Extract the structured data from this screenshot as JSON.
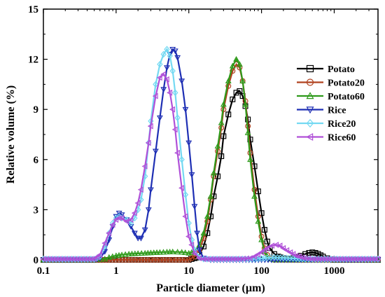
{
  "chart_data": {
    "type": "line",
    "xlabel": "Particle diameter (µm)",
    "ylabel": "Relative volume (%)",
    "x_scale": "log",
    "xlim": [
      0.1,
      4000
    ],
    "ylim": [
      0,
      15
    ],
    "x_ticks": [
      0.1,
      1,
      10,
      100,
      1000
    ],
    "x_tick_labels": [
      "0.1",
      "1",
      "10",
      "100",
      "1000"
    ],
    "y_ticks": [
      0,
      3,
      6,
      9,
      12,
      15
    ],
    "y_tick_labels": [
      "0",
      "3",
      "6",
      "9",
      "12",
      "15"
    ],
    "grid": false,
    "legend_position": "right",
    "series": [
      {
        "name": "Potato",
        "color": "#000000",
        "marker": "square",
        "x": [
          0.1,
          0.5,
          0.8,
          1.5,
          3,
          6,
          10,
          12,
          14,
          16,
          18,
          20,
          22,
          25,
          28,
          30,
          35,
          40,
          45,
          50,
          55,
          60,
          65,
          70,
          80,
          90,
          100,
          110,
          120,
          130,
          150,
          170,
          200,
          250,
          300,
          350,
          400,
          450,
          500,
          550,
          600,
          650,
          700,
          800,
          900,
          1000,
          1500,
          2000,
          3000,
          4000
        ],
        "y": [
          0,
          0,
          0,
          0,
          0,
          0,
          0,
          0.1,
          0.3,
          0.8,
          1.6,
          2.6,
          3.8,
          5.0,
          6.2,
          7.4,
          8.7,
          9.6,
          10.0,
          10.1,
          9.8,
          9.2,
          8.4,
          7.2,
          5.6,
          4.1,
          2.8,
          1.8,
          1.1,
          0.7,
          0.35,
          0.2,
          0.1,
          0.05,
          0.15,
          0.25,
          0.35,
          0.42,
          0.45,
          0.42,
          0.36,
          0.28,
          0.2,
          0.1,
          0.04,
          0,
          0,
          0,
          0,
          0
        ]
      },
      {
        "name": "Potato20",
        "color": "#b0411e",
        "marker": "circle",
        "x": [
          0.1,
          0.5,
          0.8,
          1.5,
          3,
          6,
          10,
          12,
          14,
          16,
          18,
          20,
          22,
          25,
          28,
          30,
          35,
          40,
          45,
          50,
          55,
          60,
          65,
          70,
          80,
          90,
          100,
          110,
          120,
          130,
          150,
          200,
          300,
          500,
          1000,
          2000,
          4000
        ],
        "y": [
          0,
          0,
          0,
          0,
          0,
          0,
          0,
          0.2,
          0.6,
          1.3,
          2.3,
          3.6,
          5.0,
          6.5,
          7.9,
          9.0,
          10.4,
          11.3,
          11.7,
          11.5,
          10.7,
          9.5,
          8.0,
          6.4,
          4.2,
          2.6,
          1.4,
          0.7,
          0.3,
          0.1,
          0,
          0,
          0,
          0,
          0,
          0,
          0
        ]
      },
      {
        "name": "Potato60",
        "color": "#2e9a1a",
        "marker": "triangle-up",
        "x": [
          0.1,
          0.5,
          0.7,
          0.8,
          1,
          1.2,
          1.5,
          2,
          2.5,
          3,
          4,
          5,
          6,
          7,
          8,
          10,
          12,
          14,
          16,
          18,
          20,
          22,
          25,
          28,
          30,
          35,
          40,
          45,
          50,
          55,
          60,
          65,
          70,
          80,
          90,
          100,
          110,
          120,
          130,
          150,
          200,
          300,
          500,
          1000,
          2000,
          4000
        ],
        "y": [
          0,
          0,
          0.05,
          0.15,
          0.25,
          0.3,
          0.35,
          0.38,
          0.4,
          0.42,
          0.45,
          0.47,
          0.48,
          0.47,
          0.46,
          0.4,
          0.5,
          0.9,
          1.6,
          2.6,
          3.8,
          5.2,
          6.8,
          8.2,
          9.3,
          10.7,
          11.6,
          12.0,
          11.7,
          10.7,
          9.3,
          7.6,
          6.0,
          3.8,
          2.3,
          1.2,
          0.5,
          0.2,
          0.05,
          0,
          0,
          0,
          0,
          0,
          0,
          0
        ]
      },
      {
        "name": "Rice",
        "color": "#1e2fb4",
        "marker": "triangle-down",
        "x": [
          0.1,
          0.5,
          0.6,
          0.7,
          0.8,
          0.9,
          1,
          1.1,
          1.2,
          1.4,
          1.6,
          1.8,
          2,
          2.2,
          2.5,
          2.8,
          3,
          3.5,
          4,
          4.5,
          5,
          5.5,
          6,
          6.5,
          7,
          8,
          9,
          10,
          11,
          12,
          13,
          14,
          16,
          20,
          50,
          100,
          1000,
          4000
        ],
        "y": [
          0,
          0,
          0.1,
          0.5,
          1.2,
          2.0,
          2.6,
          2.8,
          2.7,
          2.4,
          2.0,
          1.6,
          1.3,
          1.3,
          1.8,
          3.0,
          4.2,
          6.5,
          8.5,
          10.2,
          11.5,
          12.3,
          12.6,
          12.5,
          12.1,
          10.7,
          9.0,
          7.0,
          5.1,
          3.2,
          1.6,
          0.6,
          0.1,
          0,
          0,
          0,
          0,
          0
        ]
      },
      {
        "name": "Rice20",
        "color": "#74d9f2",
        "marker": "diamond",
        "x": [
          0.1,
          0.5,
          0.6,
          0.7,
          0.8,
          0.9,
          1,
          1.1,
          1.2,
          1.4,
          1.6,
          1.8,
          2,
          2.2,
          2.5,
          2.8,
          3,
          3.5,
          4,
          4.5,
          5,
          5.5,
          6,
          6.5,
          7,
          8,
          9,
          10,
          11,
          12,
          14,
          16,
          20,
          50,
          80,
          100,
          120,
          150,
          200,
          300,
          400,
          500,
          1000,
          2000,
          4000
        ],
        "y": [
          0.05,
          0.05,
          0.2,
          0.8,
          1.6,
          2.2,
          2.5,
          2.6,
          2.5,
          2.4,
          2.2,
          2.5,
          3.0,
          3.6,
          5.0,
          7.0,
          8.3,
          10.5,
          11.7,
          12.3,
          12.6,
          12.2,
          11.3,
          10.0,
          8.5,
          6.0,
          3.9,
          2.2,
          1.2,
          0.6,
          0.15,
          0.05,
          0.05,
          0.05,
          0.05,
          0.08,
          0.12,
          0.15,
          0.12,
          0.08,
          0.05,
          0.05,
          0.05,
          0.05,
          0.05
        ]
      },
      {
        "name": "Rice60",
        "color": "#b050d8",
        "marker": "triangle-left",
        "x": [
          0.1,
          0.3,
          0.5,
          0.6,
          0.7,
          0.8,
          0.9,
          1,
          1.1,
          1.2,
          1.4,
          1.6,
          1.8,
          2,
          2.2,
          2.5,
          2.8,
          3,
          3.5,
          4,
          4.5,
          5,
          5.5,
          6,
          6.5,
          7,
          8,
          9,
          10,
          12,
          14,
          16,
          20,
          30,
          50,
          70,
          80,
          100,
          120,
          140,
          160,
          180,
          200,
          250,
          300,
          400,
          500,
          1000,
          2000,
          4000
        ],
        "y": [
          0.05,
          0.05,
          0.05,
          0.3,
          1.0,
          1.6,
          2.1,
          2.4,
          2.5,
          2.5,
          2.3,
          2.4,
          2.8,
          3.4,
          4.2,
          5.6,
          7.0,
          8.0,
          9.8,
          10.9,
          11.1,
          10.8,
          10.0,
          9.0,
          7.8,
          6.4,
          4.3,
          2.6,
          1.4,
          0.4,
          0.1,
          0.05,
          0.05,
          0.05,
          0.05,
          0.1,
          0.2,
          0.45,
          0.7,
          0.85,
          0.9,
          0.85,
          0.7,
          0.45,
          0.25,
          0.1,
          0.05,
          0.05,
          0.05,
          0.05
        ]
      }
    ]
  }
}
